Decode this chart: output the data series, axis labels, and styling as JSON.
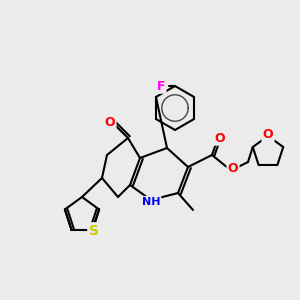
{
  "background_color": "#ebebeb",
  "bond_color": "#000000",
  "atom_colors": {
    "F": "#ff00ff",
    "O": "#ff0000",
    "N": "#0000ff",
    "S": "#cccc00",
    "C": "#000000"
  },
  "title": "",
  "figsize": [
    3.0,
    3.0
  ],
  "dpi": 100
}
